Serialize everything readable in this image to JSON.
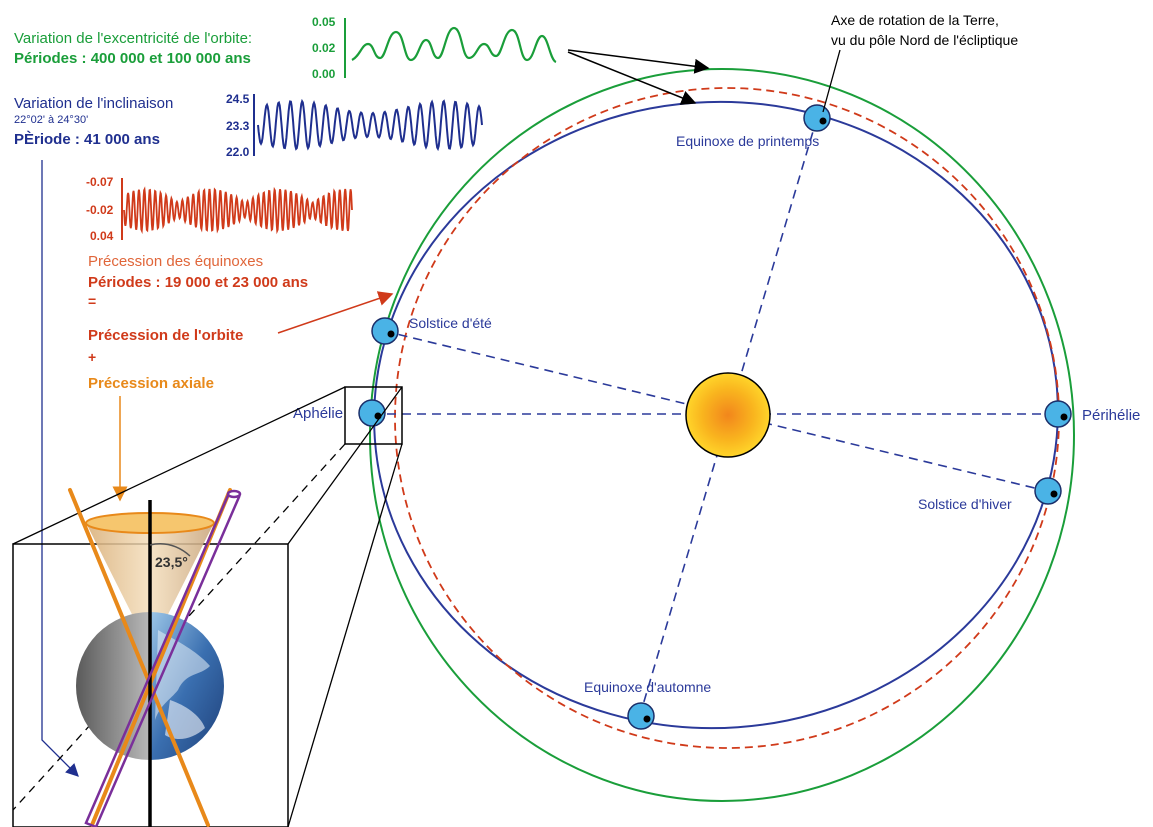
{
  "colors": {
    "green": "#1a9e3a",
    "blue": "#1f2f8f",
    "red": "#d03a1a",
    "orange": "#e8891a",
    "orbit_blue": "#2b3a9a",
    "planet": "#4ab3e6",
    "sun": "#f7c21a",
    "purple": "#7a2f9a"
  },
  "eccentricity": {
    "title": "Variation de l'excentricité de l'orbite:",
    "periods": "Périodes : 400 000 et 100 000 ans",
    "ticks": [
      "0.05",
      "0.02",
      "0.00"
    ]
  },
  "inclination": {
    "title": "Variation de l'inclinaison",
    "range": "22°02' à 24°30'",
    "period": "PÈriode : 41 000 ans",
    "ticks": [
      "24.5",
      "23.3",
      "22.0"
    ]
  },
  "precession": {
    "ticks": [
      "-0.07",
      "-0.02",
      "0.04"
    ],
    "title": "Précession des équinoxes",
    "periods": "Périodes : 19 000 et 23 000 ans",
    "equals": "=",
    "orbit": "Précession de l'orbite",
    "plus": "+",
    "axial": "Précession axiale"
  },
  "axis_note": {
    "line1": "Axe de rotation de la Terre,",
    "line2": "vu du pôle Nord de l'écliptique"
  },
  "positions": {
    "spring": "Equinoxe de printemps",
    "summer": "Solstice d'été",
    "aphelion": "Aphélie",
    "perihelion": "Périhélie",
    "winter": "Solstice d'hiver",
    "autumn": "Equinoxe d'automne"
  },
  "tilt": "23,5°",
  "icons": [
    "sun-icon",
    "earth-icon",
    "planet-icon"
  ]
}
